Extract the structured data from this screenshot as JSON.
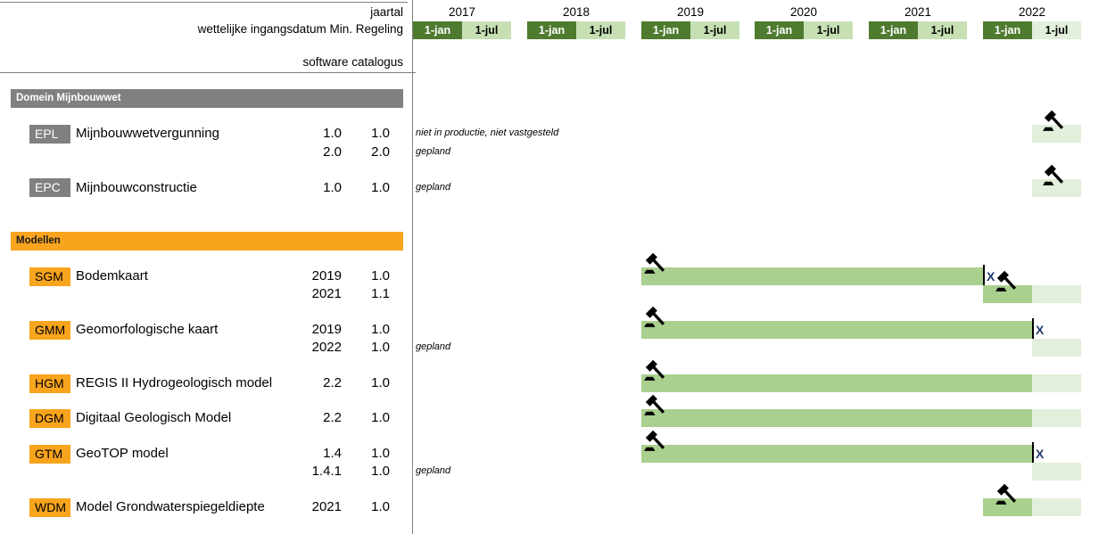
{
  "header": {
    "labels": {
      "jaartal": "jaartal",
      "regeling": "wettelijke ingangsdatum Min. Regeling",
      "catalogus": "software catalogus"
    },
    "years": [
      {
        "year": "2017",
        "jan": "1-jan",
        "jul": "1-jul",
        "jul_planned": false
      },
      {
        "year": "2018",
        "jan": "1-jan",
        "jul": "1-jul",
        "jul_planned": false
      },
      {
        "year": "2019",
        "jan": "1-jan",
        "jul": "1-jul",
        "jul_planned": false
      },
      {
        "year": "2020",
        "jan": "1-jan",
        "jul": "1-jul",
        "jul_planned": false
      },
      {
        "year": "2021",
        "jan": "1-jan",
        "jul": "1-jul",
        "jul_planned": false
      },
      {
        "year": "2022",
        "jan": "1-jan",
        "jul": "1-jul",
        "jul_planned": true
      }
    ]
  },
  "colors": {
    "dark_green": "#4e7b2f",
    "light_green": "#c6e0b4",
    "planned_green": "#e2efda",
    "bar_green": "#a9d08e",
    "gray": "#808080",
    "orange": "#f8a41d",
    "x_mark": "#1f3c6e"
  },
  "sections": [
    {
      "title": "Domein Mijnbouwwet",
      "style": "gray",
      "rows": [
        {
          "code": "EPL",
          "name": "Mijnbouwwetvergunning",
          "lines": [
            {
              "col1": "1.0",
              "col2": "1.0",
              "note": "niet in productie, niet vastgesteld",
              "timeline": {
                "planned_from": "2022-jul",
                "planned_to": "2022-dec",
                "gavel": true
              }
            },
            {
              "col1": "2.0",
              "col2": "2.0",
              "note": "gepland",
              "timeline": null
            }
          ]
        },
        {
          "code": "EPC",
          "name": "Mijnbouwconstructie",
          "lines": [
            {
              "col1": "1.0",
              "col2": "1.0",
              "note": "gepland",
              "timeline": {
                "planned_from": "2022-jul",
                "planned_to": "2022-dec",
                "gavel": true
              }
            }
          ]
        }
      ]
    },
    {
      "title": "Modellen",
      "style": "orange",
      "rows": [
        {
          "code": "SGM",
          "name": "Bodemkaart",
          "lines": [
            {
              "col1": "2019",
              "col2": "1.0",
              "note": "",
              "timeline": {
                "bar_from": "2019-jan",
                "bar_to": "2022-jan",
                "end_marker": "X",
                "gavel": true
              }
            },
            {
              "col1": "2021",
              "col2": "1.1",
              "note": "",
              "timeline": {
                "bar_from": "2022-jan",
                "bar_to": "2022-jul",
                "planned_from": "2022-jul",
                "planned_to": "2022-dec",
                "gavel": true
              }
            }
          ]
        },
        {
          "code": "GMM",
          "name": "Geomorfologische kaart",
          "lines": [
            {
              "col1": "2019",
              "col2": "1.0",
              "note": "",
              "timeline": {
                "bar_from": "2019-jan",
                "bar_to": "2022-jul",
                "end_marker": "X",
                "gavel": true
              }
            },
            {
              "col1": "2022",
              "col2": "1.0",
              "note": "gepland",
              "timeline": {
                "planned_from": "2022-jul",
                "planned_to": "2022-dec"
              }
            }
          ]
        },
        {
          "code": "HGM",
          "name": "REGIS II Hydrogeologisch model",
          "lines": [
            {
              "col1": "2.2",
              "col2": "1.0",
              "note": "",
              "timeline": {
                "bar_from": "2019-jan",
                "bar_to": "2022-jul",
                "planned_from": "2022-jul",
                "planned_to": "2022-dec",
                "gavel": true
              }
            }
          ]
        },
        {
          "code": "DGM",
          "name": "Digitaal Geologisch Model",
          "lines": [
            {
              "col1": "2.2",
              "col2": "1.0",
              "note": "",
              "timeline": {
                "bar_from": "2019-jan",
                "bar_to": "2022-jul",
                "planned_from": "2022-jul",
                "planned_to": "2022-dec",
                "gavel": true
              }
            }
          ]
        },
        {
          "code": "GTM",
          "name": "GeoTOP model",
          "lines": [
            {
              "col1": "1.4",
              "col2": "1.0",
              "note": "",
              "timeline": {
                "bar_from": "2019-jan",
                "bar_to": "2022-jul",
                "end_marker": "X",
                "gavel": true
              }
            },
            {
              "col1": "1.4.1",
              "col2": "1.0",
              "note": "gepland",
              "timeline": {
                "planned_from": "2022-jul",
                "planned_to": "2022-dec"
              }
            }
          ]
        },
        {
          "code": "WDM",
          "name": "Model Grondwaterspiegeldiepte",
          "lines": [
            {
              "col1": "2021",
              "col2": "1.0",
              "note": "",
              "timeline": {
                "bar_from": "2022-jan",
                "bar_to": "2022-jul",
                "planned_from": "2022-jul",
                "planned_to": "2022-dec",
                "gavel": true
              }
            }
          ]
        }
      ]
    }
  ]
}
